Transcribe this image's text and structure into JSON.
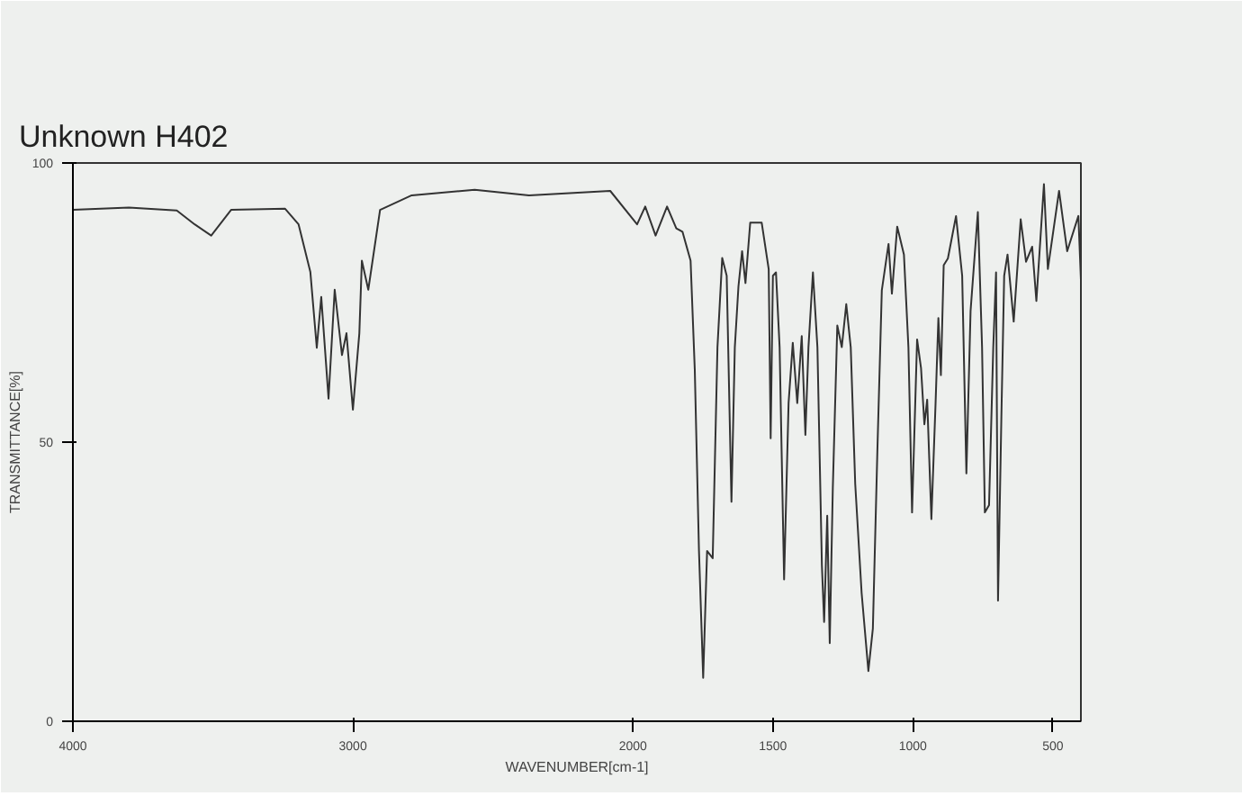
{
  "chart_data": {
    "type": "line",
    "title": "Unknown H402",
    "xlabel": "WAVENUMBER[cm-1]",
    "ylabel": "TRANSMITTANCE[%]",
    "xlim": [
      4000,
      400
    ],
    "xticks": [
      4000,
      3000,
      2000,
      1500,
      1000,
      500
    ],
    "ylim": [
      0,
      100
    ],
    "yticks": [
      0,
      50,
      100
    ],
    "grid": false,
    "marker": "none",
    "line_style": "solid",
    "series": [
      {
        "color": "#333333",
        "x": [
          4000,
          3800,
          3629,
          3565,
          3506,
          3435,
          3242,
          3194,
          3152,
          3129,
          3113,
          3087,
          3065,
          3039,
          3023,
          3000,
          2977,
          2968,
          2945,
          2903,
          2790,
          2565,
          2371,
          2081,
          1985,
          1956,
          1919,
          1878,
          1845,
          1823,
          1794,
          1779,
          1764,
          1749,
          1735,
          1715,
          1698,
          1681,
          1665,
          1648,
          1636,
          1623,
          1610,
          1598,
          1581,
          1540,
          1515,
          1508,
          1500,
          1489,
          1476,
          1460,
          1444,
          1429,
          1413,
          1397,
          1384,
          1373,
          1357,
          1341,
          1325,
          1317,
          1306,
          1297,
          1286,
          1270,
          1254,
          1238,
          1222,
          1206,
          1183,
          1159,
          1143,
          1127,
          1111,
          1087,
          1075,
          1056,
          1032,
          1016,
          1003,
          985,
          971,
          959,
          949,
          934,
          919,
          909,
          900,
          890,
          875,
          846,
          824,
          809,
          794,
          768,
          753,
          743,
          728,
          713,
          703,
          696,
          684,
          674,
          662,
          640,
          615,
          596,
          574,
          559,
          532,
          518,
          478,
          449,
          409,
          400
        ],
        "values": [
          91.6,
          92,
          91.5,
          89,
          87,
          91.6,
          91.8,
          89,
          80.5,
          66.9,
          76,
          57.8,
          77.3,
          65.6,
          69.5,
          55.8,
          69.5,
          82.5,
          77.3,
          91.6,
          94.2,
          95.2,
          94.2,
          95,
          89,
          92.2,
          87,
          92.2,
          88.3,
          87.7,
          82.5,
          63,
          30.5,
          7.8,
          30.5,
          29.2,
          67,
          83,
          79.8,
          39.3,
          67,
          77.9,
          84.2,
          78.5,
          89.3,
          89.3,
          81,
          50.7,
          79.8,
          80.4,
          67,
          25.4,
          57,
          67.8,
          57,
          69,
          51.3,
          67,
          80.4,
          67,
          27.9,
          17.8,
          36.8,
          14,
          41.8,
          70.9,
          67,
          74.7,
          67,
          42.5,
          22.9,
          9,
          16.6,
          48.2,
          77.2,
          85.5,
          76.6,
          88.6,
          83.6,
          67,
          37.4,
          68.4,
          63.3,
          53.2,
          57.6,
          36.2,
          57,
          72.2,
          62,
          81.7,
          82.9,
          90.5,
          79.8,
          44.4,
          73.5,
          91.2,
          67,
          37.4,
          38.7,
          67,
          80.4,
          21.6,
          54.5,
          79.8,
          83.6,
          71.6,
          89.9,
          82.3,
          85,
          75.3,
          96.2,
          81,
          95,
          84.2,
          90.5,
          79.1
        ]
      }
    ]
  }
}
